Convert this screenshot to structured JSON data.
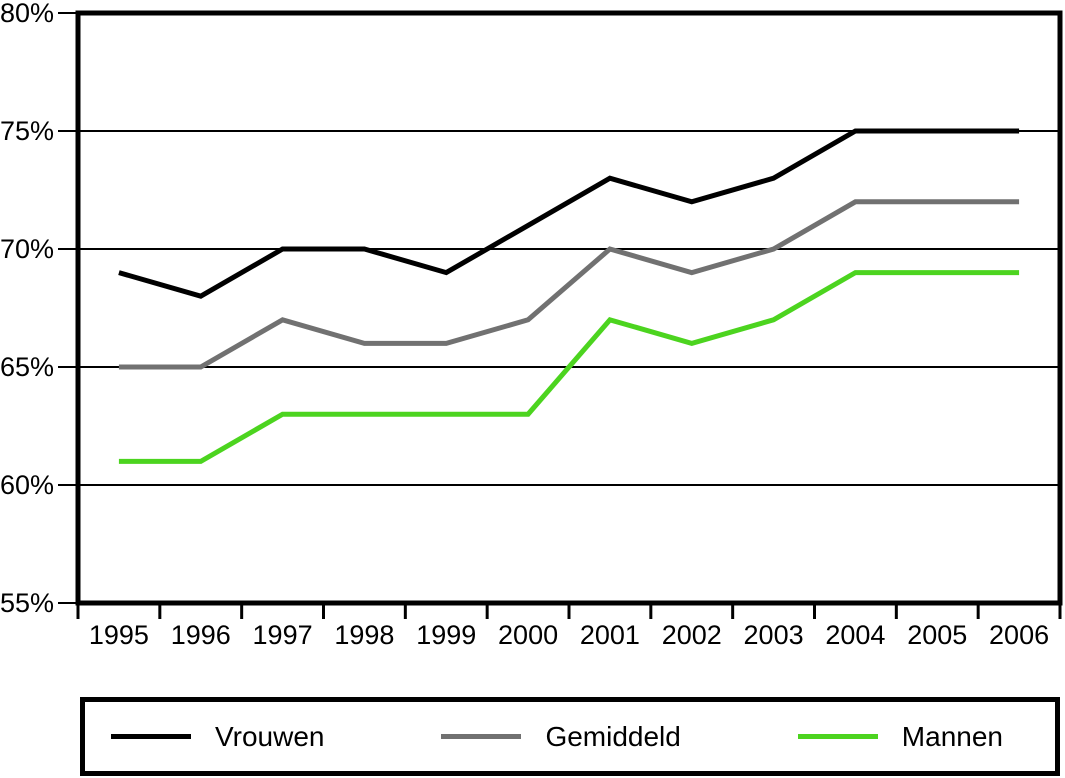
{
  "chart_data": {
    "type": "line",
    "title": "",
    "xlabel": "",
    "ylabel": "",
    "categories": [
      "1995",
      "1996",
      "1997",
      "1998",
      "1999",
      "2000",
      "2001",
      "2002",
      "2003",
      "2004",
      "2005",
      "2006"
    ],
    "series": [
      {
        "name": "Vrouwen",
        "color": "#000000",
        "values": [
          69,
          68,
          70,
          70,
          69,
          71,
          73,
          72,
          73,
          75,
          75,
          75
        ]
      },
      {
        "name": "Gemiddeld",
        "color": "#717171",
        "values": [
          65,
          65,
          67,
          66,
          66,
          67,
          70,
          69,
          70,
          72,
          72,
          72
        ]
      },
      {
        "name": "Mannen",
        "color": "#4cd41f",
        "values": [
          61,
          61,
          63,
          63,
          63,
          63,
          67,
          66,
          67,
          69,
          69,
          69
        ]
      }
    ],
    "ylim": [
      55,
      80
    ],
    "y_tick_values": [
      80,
      75,
      70,
      65,
      60,
      55
    ],
    "y_tick_labels": [
      "80%",
      "75%",
      "70%",
      "65%",
      "60%",
      "55%"
    ],
    "unit": "%",
    "grid": true,
    "legend_position": "bottom",
    "frame_color": "#000000",
    "gridline_color": "#000000"
  }
}
